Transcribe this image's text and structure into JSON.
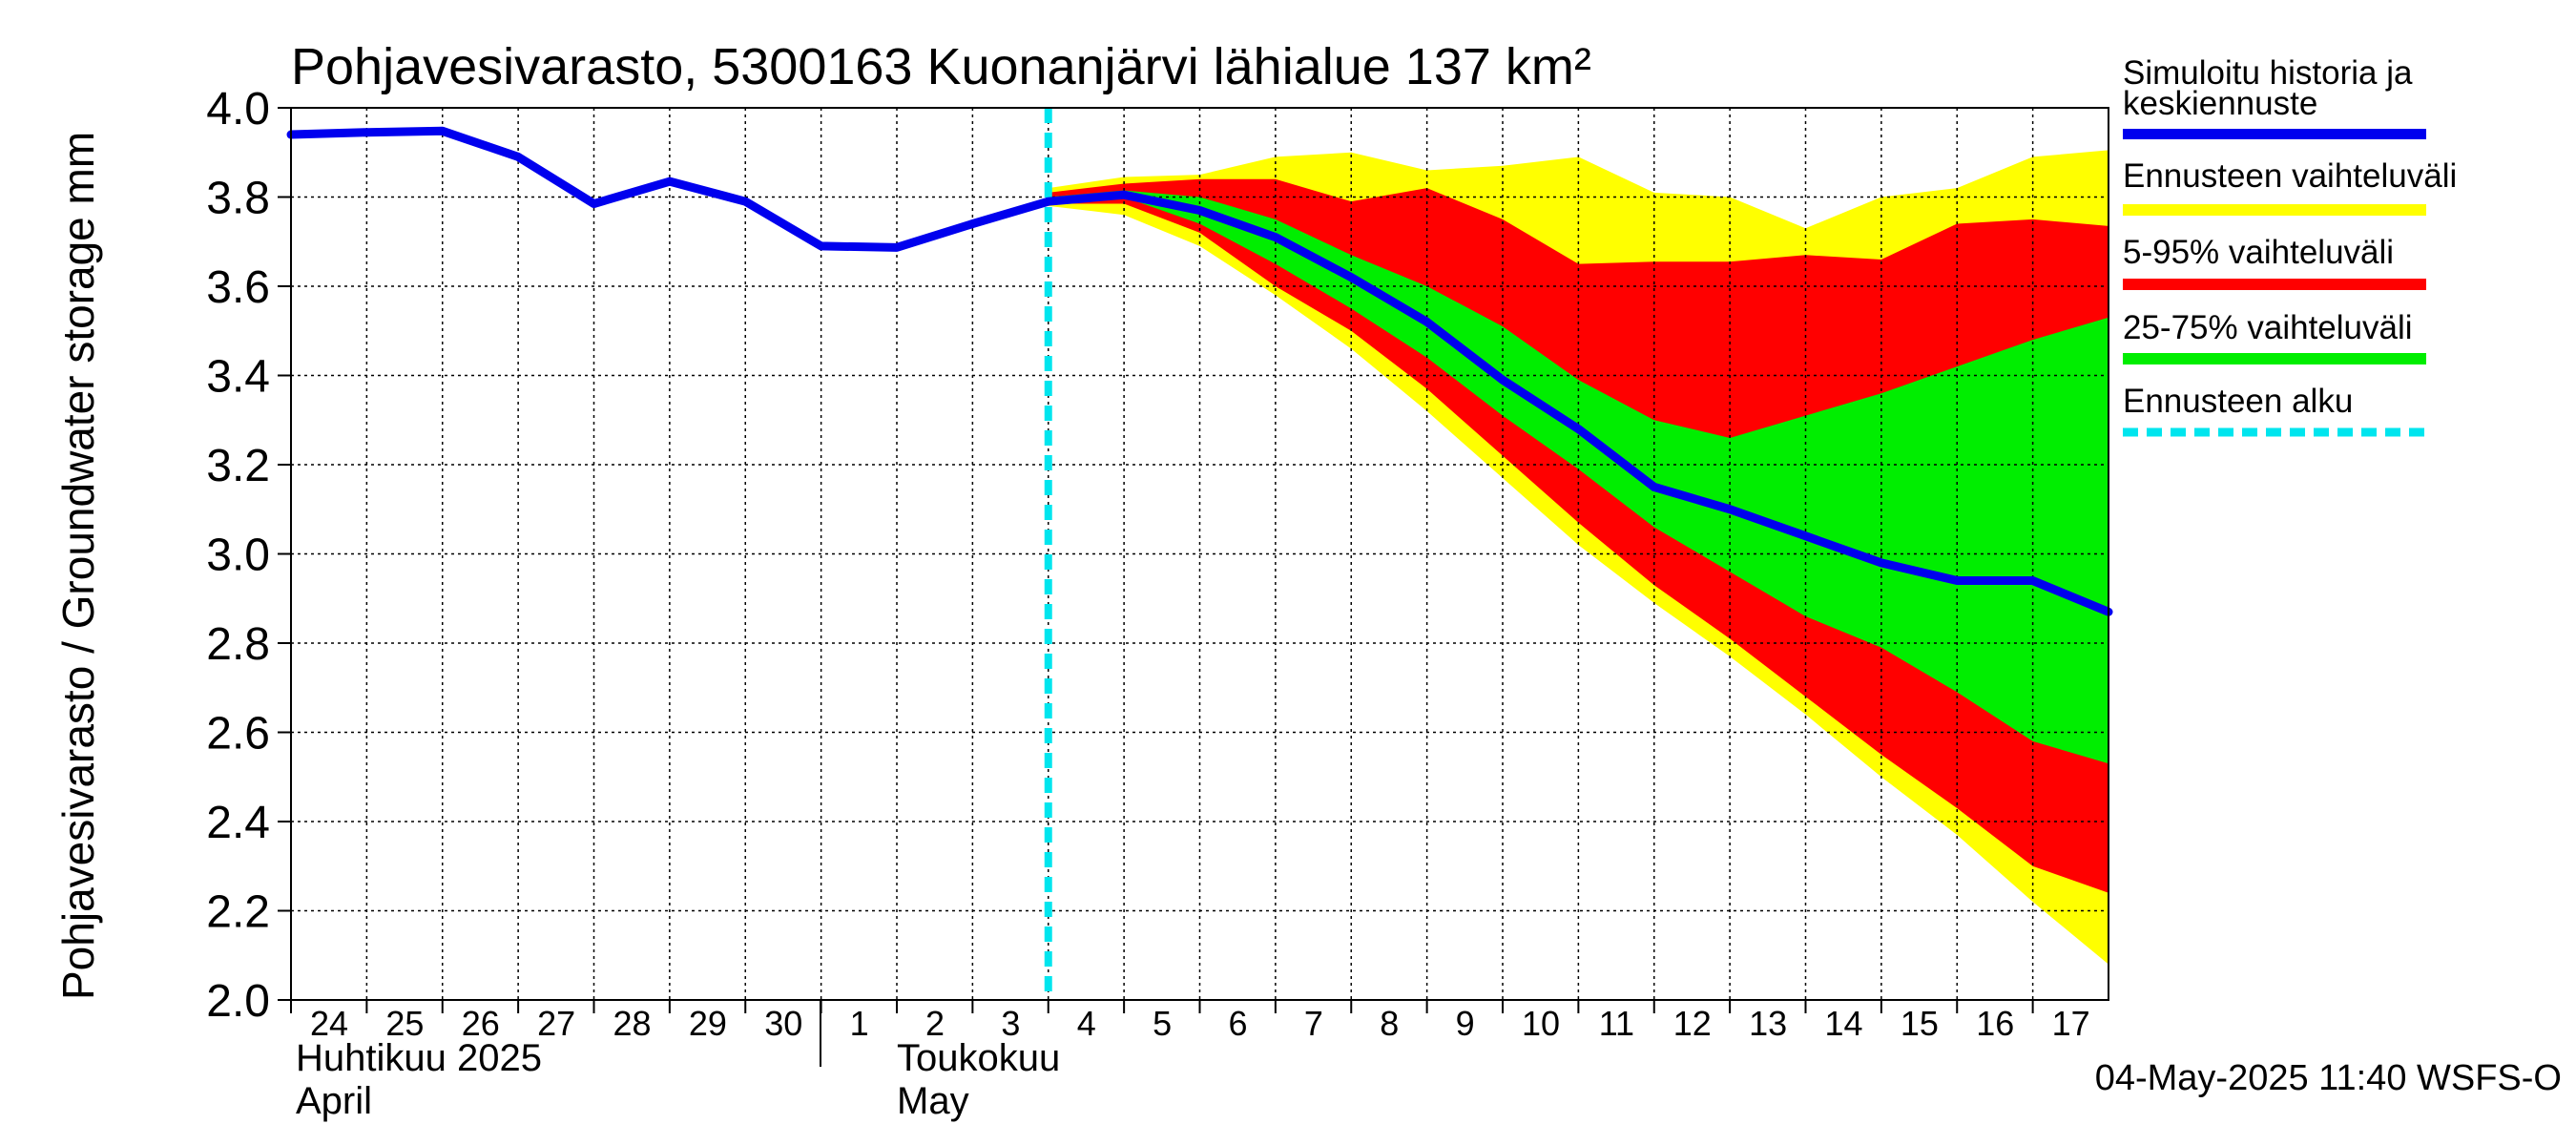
{
  "chart_data": {
    "type": "area",
    "title": "Pohjavesivarasto, 5300163 Kuonanjärvi lähialue 137 km²",
    "ylabel": "Pohjavesivarasto / Groundwater storage   mm",
    "ylim": [
      2.0,
      4.0
    ],
    "yticks": [
      "2.0",
      "2.2",
      "2.4",
      "2.6",
      "2.8",
      "3.0",
      "3.2",
      "3.4",
      "3.6",
      "3.8",
      "4.0"
    ],
    "xlim": [
      0,
      24
    ],
    "day_labels": [
      "24",
      "25",
      "26",
      "27",
      "28",
      "29",
      "30",
      "1",
      "2",
      "3",
      "4",
      "5",
      "6",
      "7",
      "8",
      "9",
      "10",
      "11",
      "12",
      "13",
      "14",
      "15",
      "16",
      "17"
    ],
    "month_labels": {
      "april_fi": "Huhtikuu  2025",
      "april_en": "April",
      "may_fi": "Toukokuu",
      "may_en": "May"
    },
    "forecast_start_x": 10,
    "history": {
      "name": "Simuloitu historia ja keskiennuste",
      "x": [
        0,
        1,
        2,
        3,
        4,
        5,
        6,
        7,
        8,
        9,
        10
      ],
      "y": [
        3.94,
        3.945,
        3.948,
        3.89,
        3.785,
        3.835,
        3.79,
        3.69,
        3.687,
        3.74,
        3.79
      ]
    },
    "forecast_x": [
      10,
      11,
      12,
      13,
      14,
      15,
      16,
      17,
      18,
      19,
      20,
      21,
      22,
      23,
      24
    ],
    "median": [
      3.79,
      3.805,
      3.77,
      3.71,
      3.62,
      3.52,
      3.39,
      3.28,
      3.15,
      3.1,
      3.04,
      2.98,
      2.94,
      2.94,
      2.87
    ],
    "range_min": [
      3.78,
      3.76,
      3.69,
      3.58,
      3.46,
      3.32,
      3.17,
      3.02,
      2.89,
      2.77,
      2.64,
      2.5,
      2.37,
      2.22,
      2.08
    ],
    "range_max": [
      3.82,
      3.845,
      3.85,
      3.89,
      3.9,
      3.86,
      3.87,
      3.89,
      3.81,
      3.8,
      3.73,
      3.8,
      3.82,
      3.89,
      3.905
    ],
    "p05": [
      3.785,
      3.785,
      3.72,
      3.6,
      3.5,
      3.37,
      3.22,
      3.07,
      2.93,
      2.81,
      2.68,
      2.55,
      2.43,
      2.3,
      2.24
    ],
    "p95": [
      3.81,
      3.83,
      3.84,
      3.84,
      3.79,
      3.82,
      3.75,
      3.65,
      3.655,
      3.655,
      3.67,
      3.66,
      3.74,
      3.75,
      3.735
    ],
    "p25": [
      3.79,
      3.8,
      3.74,
      3.65,
      3.55,
      3.44,
      3.31,
      3.19,
      3.06,
      2.96,
      2.86,
      2.79,
      2.69,
      2.58,
      2.53
    ],
    "p75": [
      3.8,
      3.815,
      3.8,
      3.75,
      3.67,
      3.6,
      3.51,
      3.39,
      3.3,
      3.26,
      3.31,
      3.36,
      3.42,
      3.48,
      3.53
    ],
    "legend": {
      "median_label": [
        "Simuloitu historia ja",
        "keskiennuste"
      ],
      "range_label": "Ennusteen vaihteluväli",
      "p5_95_label": "5-95% vaihteluväli",
      "p25_75_label": "25-75% vaihteluväli",
      "start_label": "Ennusteen alku"
    },
    "colors": {
      "median": "#0000ee",
      "range": "#ffff00",
      "p5_95": "#ff0000",
      "p25_75": "#00ee00",
      "forecast_start": "#00e5ee"
    },
    "footer": "04-May-2025 11:40 WSFS-O"
  }
}
